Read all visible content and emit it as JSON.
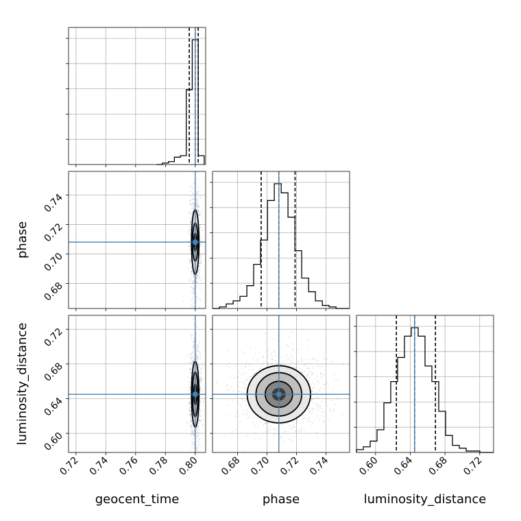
{
  "chart_data": {
    "type": "corner",
    "parameters": [
      "geocent_time",
      "phase",
      "luminosity_distance"
    ],
    "truth_color": "#4682b4",
    "truths": [
      0.8,
      0.708,
      0.645
    ],
    "ranges": {
      "geocent_time": [
        0.715,
        0.807
      ],
      "phase": [
        0.663,
        0.756
      ],
      "luminosity_distance": [
        0.578,
        0.736
      ]
    },
    "ticks": {
      "geocent_time": [
        "0.72",
        "0.74",
        "0.76",
        "0.78",
        "0.80"
      ],
      "phase": [
        "0.68",
        "0.70",
        "0.72",
        "0.74"
      ],
      "luminosity_distance": [
        "0.60",
        "0.64",
        "0.68",
        "0.72"
      ]
    },
    "histograms": [
      {
        "parameter": "geocent_time",
        "quantiles": [
          0.796,
          0.8,
          0.802
        ],
        "bin_edges": [
          0.774,
          0.778,
          0.782,
          0.786,
          0.79,
          0.794,
          0.798,
          0.802,
          0.806
        ],
        "counts": [
          0,
          0.01,
          0.02,
          0.05,
          0.06,
          0.51,
          0.85,
          0.06
        ]
      },
      {
        "parameter": "phase",
        "quantiles": [
          0.696,
          0.708,
          0.719
        ],
        "bin_edges": [
          0.663,
          0.6677,
          0.6723,
          0.677,
          0.6816,
          0.6863,
          0.6909,
          0.6956,
          0.7003,
          0.7049,
          0.7096,
          0.7142,
          0.7189,
          0.7235,
          0.7282,
          0.7328,
          0.7375,
          0.7421,
          0.7468,
          0.7514,
          0.756
        ],
        "counts": [
          0.0,
          0.01,
          0.03,
          0.05,
          0.08,
          0.15,
          0.29,
          0.45,
          0.71,
          0.82,
          0.76,
          0.6,
          0.38,
          0.2,
          0.11,
          0.05,
          0.02,
          0.01,
          0.0,
          0.0
        ]
      },
      {
        "parameter": "luminosity_distance",
        "quantiles": [
          0.624,
          0.645,
          0.669
        ],
        "bin_edges": [
          0.578,
          0.5859,
          0.5938,
          0.6017,
          0.6096,
          0.6175,
          0.6254,
          0.6333,
          0.6412,
          0.6491,
          0.657,
          0.6649,
          0.6728,
          0.6807,
          0.6886,
          0.6965,
          0.7044,
          0.7123,
          0.7202,
          0.7281,
          0.736
        ],
        "counts": [
          0.02,
          0.04,
          0.08,
          0.16,
          0.35,
          0.5,
          0.67,
          0.82,
          0.88,
          0.82,
          0.61,
          0.5,
          0.29,
          0.12,
          0.05,
          0.03,
          0.01,
          0.01,
          0.0,
          0.0
        ]
      }
    ],
    "pairs": [
      {
        "x": "geocent_time",
        "y": "phase",
        "center": [
          0.8,
          0.708
        ],
        "contours": [
          [
            0.0025,
            0.022
          ],
          [
            0.0018,
            0.013
          ],
          [
            0.0009,
            0.006
          ]
        ]
      },
      {
        "x": "geocent_time",
        "y": "luminosity_distance",
        "center": [
          0.8,
          0.645
        ],
        "contours": [
          [
            0.0025,
            0.038
          ],
          [
            0.0018,
            0.026
          ],
          [
            0.0009,
            0.012
          ]
        ]
      },
      {
        "x": "phase",
        "y": "luminosity_distance",
        "center": [
          0.708,
          0.645
        ],
        "contours": [
          [
            0.0215,
            0.033
          ],
          [
            0.0155,
            0.025
          ],
          [
            0.0093,
            0.015
          ]
        ]
      }
    ],
    "grid": true
  }
}
